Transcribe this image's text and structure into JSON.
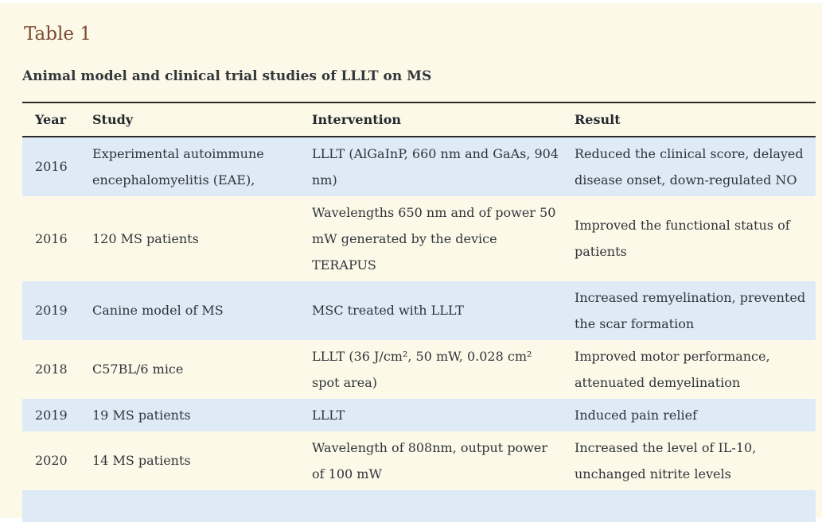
{
  "page": {
    "table_label": "Table 1",
    "caption": "Animal model and clinical trial studies of LLLT on MS"
  },
  "table": {
    "columns": [
      "Year",
      "Study",
      "Intervention",
      "Result"
    ],
    "rows": [
      {
        "year": "2016",
        "study": "Experimental autoimmune encephalomyelitis (EAE),",
        "intervention": "LLLT (AlGaInP, 660 nm and GaAs, 904 nm)",
        "result": "Reduced the clinical score, delayed disease onset, down-regulated NO"
      },
      {
        "year": "2016",
        "study": "120 MS patients",
        "intervention": "Wavelengths 650 nm and of power 50 mW generated by the device TERAPUS",
        "result": "Improved the functional status of patients"
      },
      {
        "year": "2019",
        "study": "Canine model of MS",
        "intervention": "MSC treated with LLLT",
        "result": "Increased remyelination, prevented the scar formation"
      },
      {
        "year": "2018",
        "study": "C57BL/6 mice",
        "intervention": "LLLT (36 J/cm², 50 mW, 0.028 cm² spot area)",
        "result": "Improved motor performance, attenuated demyelination"
      },
      {
        "year": "2019",
        "study": "19 MS patients",
        "intervention": "LLLT",
        "result": "Induced pain relief"
      },
      {
        "year": "2020",
        "study": "14 MS patients",
        "intervention": "Wavelength of 808nm, output power of 100 mW",
        "result": "Increased the level of IL-10, unchanged nitrite levels"
      }
    ]
  },
  "colors": {
    "background": "#fdf9e8",
    "row_highlight": "#dfeaf7",
    "title_brown": "#7b4a2f",
    "border_dark": "#2b2b2b",
    "text": "#2f353b"
  }
}
